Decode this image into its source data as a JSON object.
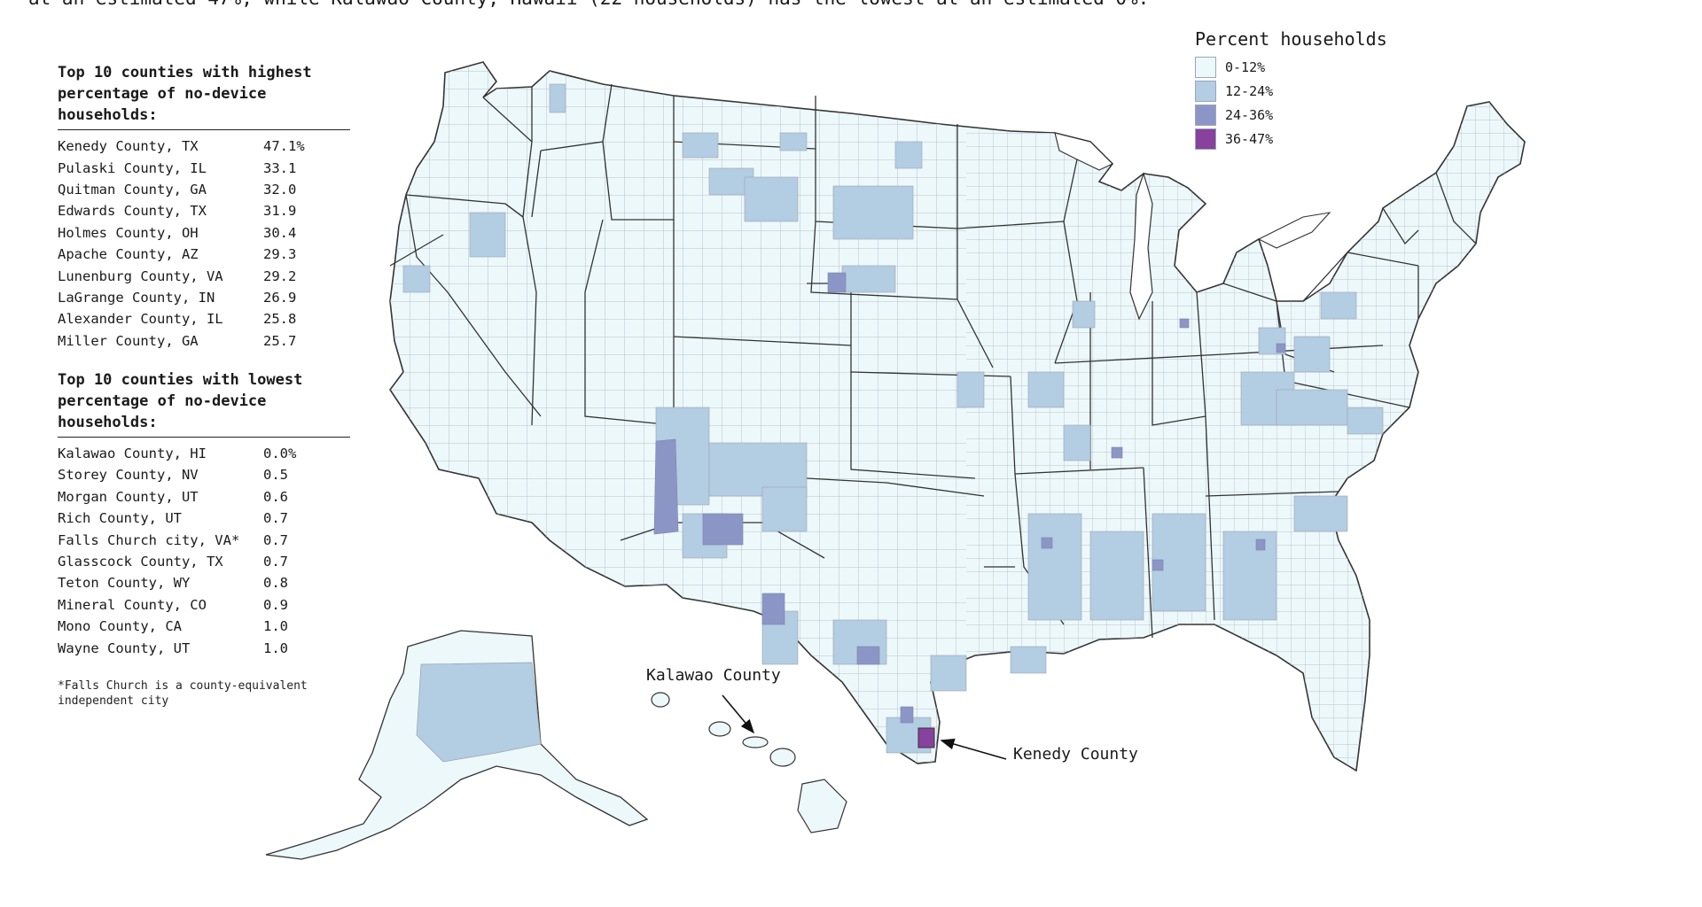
{
  "intro_fragment": "at an estimated 47%, while Kalawao County, Hawaii (22 households) has the lowest at an estimated 0%.",
  "highest": {
    "heading": "Top 10 counties with highest\npercentage of no-device\nhouseholds:",
    "rows": [
      {
        "name": "Kenedy County, TX",
        "value": "47.1%"
      },
      {
        "name": "Pulaski County, IL",
        "value": "33.1"
      },
      {
        "name": "Quitman County, GA",
        "value": "32.0"
      },
      {
        "name": "Edwards County, TX",
        "value": "31.9"
      },
      {
        "name": "Holmes County, OH",
        "value": "30.4"
      },
      {
        "name": "Apache County, AZ",
        "value": "29.3"
      },
      {
        "name": "Lunenburg County, VA",
        "value": "29.2"
      },
      {
        "name": "LaGrange County, IN",
        "value": "26.9"
      },
      {
        "name": "Alexander County, IL",
        "value": "25.8"
      },
      {
        "name": "Miller County, GA",
        "value": "25.7"
      }
    ]
  },
  "lowest": {
    "heading": "Top 10 counties with lowest\npercentage of no-device\nhouseholds:",
    "rows": [
      {
        "name": "Kalawao County, HI",
        "value": "0.0%"
      },
      {
        "name": "Storey County, NV",
        "value": "0.5"
      },
      {
        "name": "Morgan County, UT",
        "value": "0.6"
      },
      {
        "name": "Rich County, UT",
        "value": "0.7"
      },
      {
        "name": "Falls Church city, VA*",
        "value": "0.7"
      },
      {
        "name": "Glasscock County, TX",
        "value": "0.7"
      },
      {
        "name": "Teton County, WY",
        "value": "0.8"
      },
      {
        "name": "Mineral County, CO",
        "value": "0.9"
      },
      {
        "name": "Mono County, CA",
        "value": "1.0"
      },
      {
        "name": "Wayne County, UT",
        "value": "1.0"
      }
    ]
  },
  "footnote": "*Falls Church is a county-equivalent\nindependent city",
  "legend": {
    "title": "Percent households",
    "items": [
      {
        "label": "0-12%",
        "color": "#edf8fb"
      },
      {
        "label": "12-24%",
        "color": "#b3cde3"
      },
      {
        "label": "24-36%",
        "color": "#8c96c6"
      },
      {
        "label": "36-47%",
        "color": "#88419d"
      }
    ]
  },
  "callouts": {
    "kalawao": "Kalawao County",
    "kenedy": "Kenedy County"
  },
  "colors": {
    "state_border": "#333333",
    "county_border": "#9aa3ad",
    "base_fill": "#edf8fb"
  }
}
